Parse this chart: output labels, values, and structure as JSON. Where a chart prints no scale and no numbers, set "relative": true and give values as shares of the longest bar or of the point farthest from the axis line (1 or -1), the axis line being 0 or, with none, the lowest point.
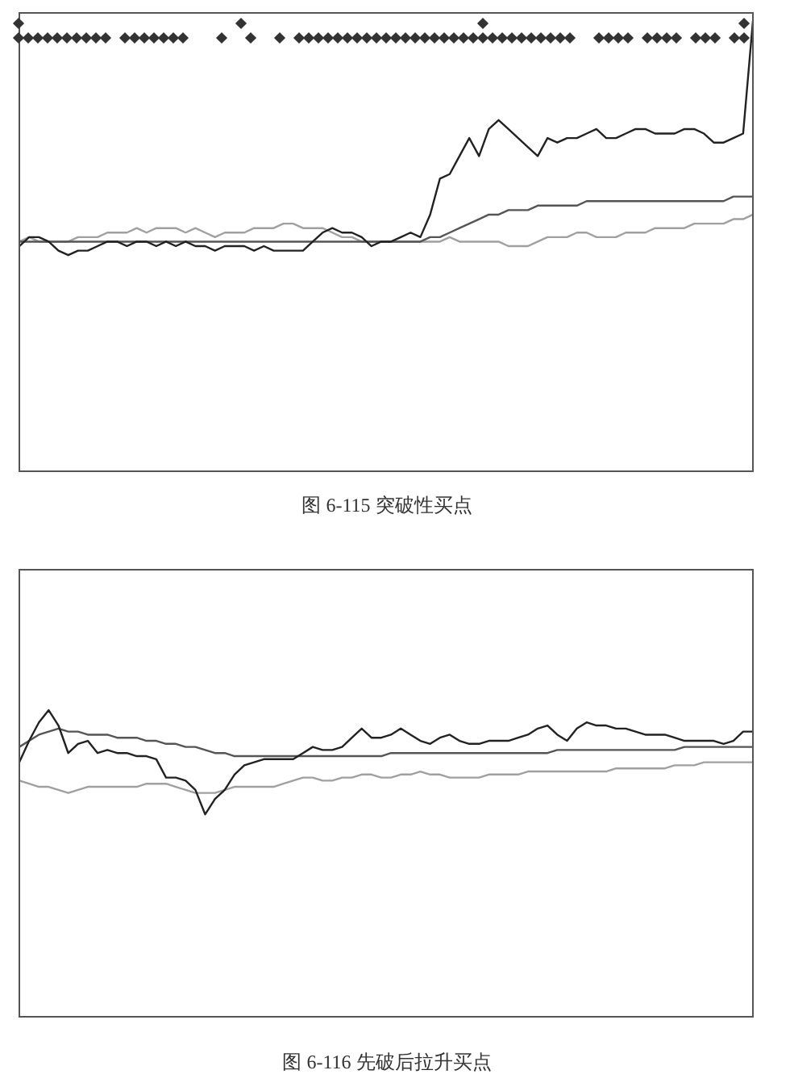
{
  "chart_data": [
    {
      "type": "line",
      "title": "图 6-115 突破性买点",
      "relative": true,
      "categories": [
        null,
        null,
        null,
        null,
        null,
        null,
        null,
        null,
        null,
        null,
        null,
        null,
        null,
        null,
        null,
        null,
        null,
        null,
        null,
        null,
        null,
        null,
        null,
        null,
        null,
        null,
        null,
        null,
        null,
        null,
        null,
        null,
        null,
        null,
        null,
        null,
        null,
        null,
        null,
        null,
        null,
        null,
        null,
        null,
        null,
        null,
        null,
        null,
        null,
        null,
        null,
        null,
        null,
        null,
        null,
        null,
        null,
        null,
        null,
        null,
        null,
        null,
        null,
        null,
        null,
        null,
        null,
        null,
        null,
        null,
        null,
        null,
        null,
        null,
        null,
        null
      ],
      "series": [
        {
          "color": "#222222",
          "values": [
            0.5,
            0.52,
            0.52,
            0.51,
            0.49,
            0.48,
            0.49,
            0.49,
            0.5,
            0.51,
            0.51,
            0.5,
            0.51,
            0.51,
            0.5,
            0.51,
            0.5,
            0.51,
            0.5,
            0.5,
            0.49,
            0.5,
            0.5,
            0.5,
            0.49,
            0.5,
            0.49,
            0.49,
            0.49,
            0.49,
            0.51,
            0.53,
            0.54,
            0.53,
            0.53,
            0.52,
            0.5,
            0.51,
            0.51,
            0.52,
            0.53,
            0.52,
            0.57,
            0.65,
            0.66,
            0.7,
            0.74,
            0.7,
            0.76,
            0.78,
            0.76,
            0.74,
            0.72,
            0.7,
            0.74,
            0.73,
            0.74,
            0.74,
            0.75,
            0.76,
            0.74,
            0.74,
            0.75,
            0.76,
            0.76,
            0.75,
            0.75,
            0.75,
            0.76,
            0.76,
            0.75,
            0.73,
            0.73,
            0.74,
            0.75,
            1
          ]
        },
        {
          "color": "#555555",
          "values": [
            0.51,
            0.51,
            0.51,
            0.51,
            0.51,
            0.51,
            0.51,
            0.51,
            0.51,
            0.51,
            0.51,
            0.51,
            0.51,
            0.51,
            0.51,
            0.51,
            0.51,
            0.51,
            0.51,
            0.51,
            0.51,
            0.51,
            0.51,
            0.51,
            0.51,
            0.51,
            0.51,
            0.51,
            0.51,
            0.51,
            0.51,
            0.51,
            0.51,
            0.51,
            0.51,
            0.51,
            0.51,
            0.51,
            0.51,
            0.51,
            0.51,
            0.51,
            0.52,
            0.52,
            0.53,
            0.54,
            0.55,
            0.56,
            0.57,
            0.57,
            0.58,
            0.58,
            0.58,
            0.59,
            0.59,
            0.59,
            0.59,
            0.59,
            0.6,
            0.6,
            0.6,
            0.6,
            0.6,
            0.6,
            0.6,
            0.6,
            0.6,
            0.6,
            0.6,
            0.6,
            0.6,
            0.6,
            0.6,
            0.61,
            0.61,
            0.61
          ]
        },
        {
          "color": "#a0a0a0",
          "values": [
            0.51,
            0.52,
            0.51,
            0.51,
            0.51,
            0.51,
            0.52,
            0.52,
            0.52,
            0.53,
            0.53,
            0.53,
            0.54,
            0.53,
            0.54,
            0.54,
            0.54,
            0.53,
            0.54,
            0.53,
            0.52,
            0.53,
            0.53,
            0.53,
            0.54,
            0.54,
            0.54,
            0.55,
            0.55,
            0.54,
            0.54,
            0.54,
            0.53,
            0.52,
            0.52,
            0.51,
            0.51,
            0.51,
            0.51,
            0.51,
            0.51,
            0.51,
            0.51,
            0.51,
            0.52,
            0.51,
            0.51,
            0.51,
            0.51,
            0.51,
            0.5,
            0.5,
            0.5,
            0.51,
            0.52,
            0.52,
            0.52,
            0.53,
            0.53,
            0.52,
            0.52,
            0.52,
            0.53,
            0.53,
            0.53,
            0.54,
            0.54,
            0.54,
            0.54,
            0.55,
            0.55,
            0.55,
            0.55,
            0.56,
            0.56,
            0.57
          ]
        }
      ]
    },
    {
      "type": "line",
      "title": "图 6-116 先破后拉升买点",
      "relative": true,
      "categories": [
        null,
        null,
        null,
        null,
        null,
        null,
        null,
        null,
        null,
        null,
        null,
        null,
        null,
        null,
        null,
        null,
        null,
        null,
        null,
        null,
        null,
        null,
        null,
        null,
        null,
        null,
        null,
        null,
        null,
        null,
        null,
        null,
        null,
        null,
        null,
        null,
        null,
        null,
        null,
        null,
        null,
        null,
        null,
        null,
        null,
        null,
        null,
        null,
        null,
        null,
        null,
        null,
        null,
        null,
        null,
        null,
        null,
        null,
        null,
        null,
        null,
        null,
        null,
        null,
        null,
        null,
        null,
        null,
        null,
        null,
        null,
        null,
        null,
        null,
        null,
        null
      ],
      "series": [
        {
          "color": "#222222",
          "values": [
            0.83,
            0.9,
            0.96,
            1,
            0.95,
            0.86,
            0.89,
            0.9,
            0.86,
            0.87,
            0.86,
            0.86,
            0.85,
            0.85,
            0.84,
            0.78,
            0.78,
            0.77,
            0.74,
            0.66,
            0.71,
            0.74,
            0.79,
            0.82,
            0.83,
            0.84,
            0.84,
            0.84,
            0.84,
            0.86,
            0.88,
            0.87,
            0.87,
            0.88,
            0.91,
            0.94,
            0.91,
            0.91,
            0.92,
            0.94,
            0.92,
            0.9,
            0.89,
            0.91,
            0.92,
            0.9,
            0.89,
            0.89,
            0.9,
            0.9,
            0.9,
            0.91,
            0.92,
            0.94,
            0.95,
            0.92,
            0.9,
            0.94,
            0.96,
            0.95,
            0.95,
            0.94,
            0.94,
            0.93,
            0.92,
            0.92,
            0.92,
            0.91,
            0.9,
            0.9,
            0.9,
            0.9,
            0.89,
            0.9,
            0.93,
            0.93
          ]
        },
        {
          "color": "#555555",
          "values": [
            0.88,
            0.9,
            0.92,
            0.93,
            0.94,
            0.93,
            0.93,
            0.92,
            0.92,
            0.92,
            0.91,
            0.91,
            0.91,
            0.9,
            0.9,
            0.89,
            0.89,
            0.88,
            0.88,
            0.87,
            0.86,
            0.86,
            0.85,
            0.85,
            0.85,
            0.85,
            0.85,
            0.85,
            0.85,
            0.85,
            0.85,
            0.85,
            0.85,
            0.85,
            0.85,
            0.85,
            0.85,
            0.85,
            0.86,
            0.86,
            0.86,
            0.86,
            0.86,
            0.86,
            0.86,
            0.86,
            0.86,
            0.86,
            0.86,
            0.86,
            0.86,
            0.86,
            0.86,
            0.86,
            0.86,
            0.87,
            0.87,
            0.87,
            0.87,
            0.87,
            0.87,
            0.87,
            0.87,
            0.87,
            0.87,
            0.87,
            0.87,
            0.87,
            0.88,
            0.88,
            0.88,
            0.88,
            0.88,
            0.88,
            0.88,
            0.88
          ]
        },
        {
          "color": "#a0a0a0",
          "values": [
            0.77,
            0.76,
            0.75,
            0.75,
            0.74,
            0.73,
            0.74,
            0.75,
            0.75,
            0.75,
            0.75,
            0.75,
            0.75,
            0.76,
            0.76,
            0.76,
            0.75,
            0.74,
            0.73,
            0.73,
            0.73,
            0.74,
            0.75,
            0.75,
            0.75,
            0.75,
            0.75,
            0.76,
            0.77,
            0.78,
            0.78,
            0.77,
            0.77,
            0.78,
            0.78,
            0.79,
            0.79,
            0.78,
            0.78,
            0.79,
            0.79,
            0.8,
            0.79,
            0.79,
            0.78,
            0.78,
            0.78,
            0.78,
            0.79,
            0.79,
            0.79,
            0.79,
            0.8,
            0.8,
            0.8,
            0.8,
            0.8,
            0.8,
            0.8,
            0.8,
            0.8,
            0.81,
            0.81,
            0.81,
            0.81,
            0.81,
            0.81,
            0.82,
            0.82,
            0.82,
            0.83,
            0.83,
            0.83,
            0.83,
            0.83,
            0.83
          ]
        }
      ]
    }
  ]
}
